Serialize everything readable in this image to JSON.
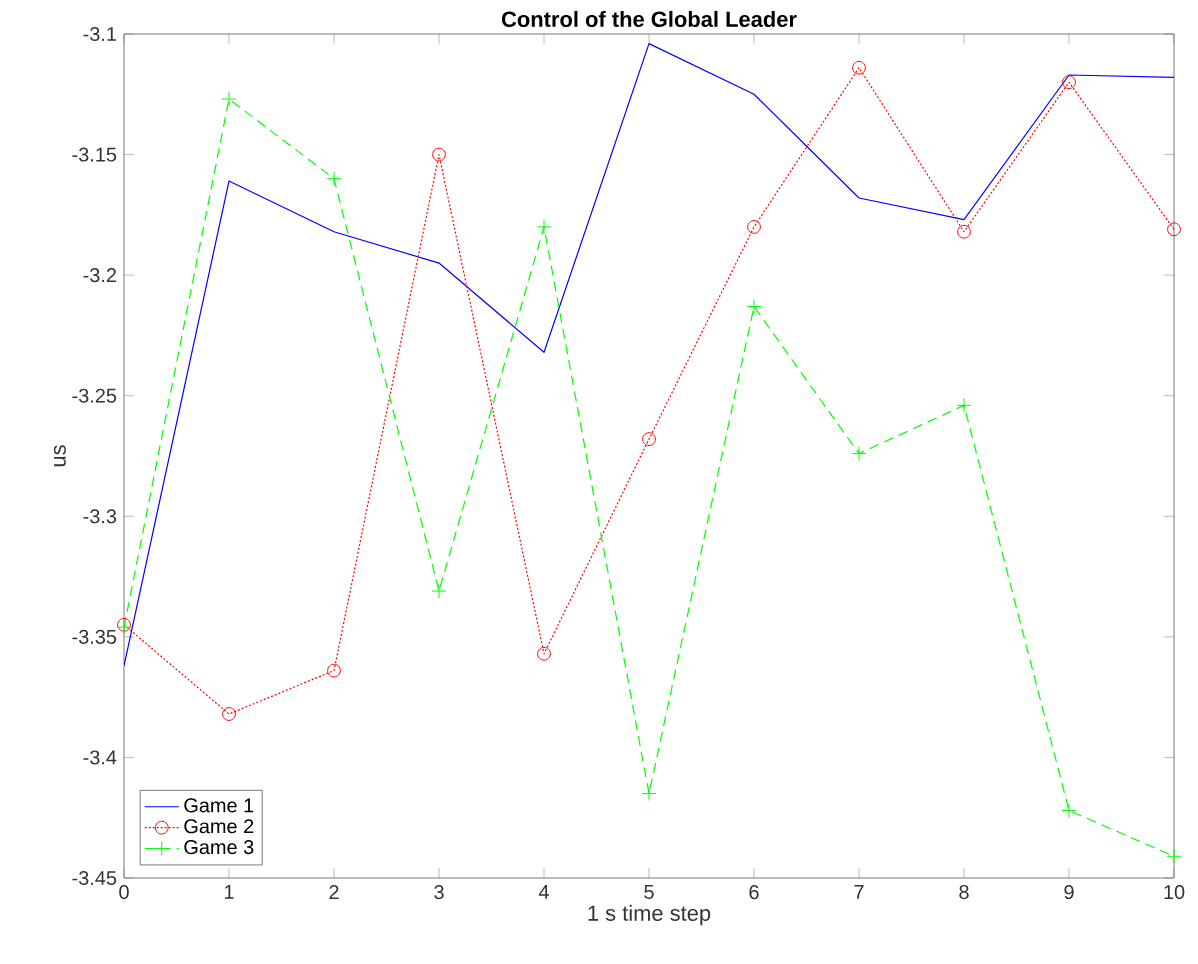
{
  "chart_data": {
    "type": "line",
    "title": "Control of the Global Leader",
    "xlabel": "1 s time step",
    "ylabel": "us",
    "x": [
      0,
      1,
      2,
      3,
      4,
      5,
      6,
      7,
      8,
      9,
      10
    ],
    "series": [
      {
        "name": "Game 1",
        "color": "#0000ff",
        "marker": "none",
        "line_style": "solid",
        "values": [
          -3.362,
          -3.161,
          -3.182,
          -3.195,
          -3.232,
          -3.104,
          -3.125,
          -3.168,
          -3.177,
          -3.117,
          -3.118
        ]
      },
      {
        "name": "Game 2",
        "color": "#ff0000",
        "marker": "circle",
        "line_style": "dotted",
        "values": [
          -3.345,
          -3.382,
          -3.364,
          -3.15,
          -3.357,
          -3.268,
          -3.18,
          -3.114,
          -3.182,
          -3.12,
          -3.181
        ]
      },
      {
        "name": "Game 3",
        "color": "#00ff00",
        "marker": "cross",
        "line_style": "dashed",
        "values": [
          -3.346,
          -3.127,
          -3.16,
          -3.331,
          -3.18,
          -3.415,
          -3.213,
          -3.274,
          -3.254,
          -3.422,
          -3.441
        ]
      }
    ],
    "xlim": [
      0,
      10
    ],
    "ylim": [
      -3.45,
      -3.1
    ],
    "xticks": [
      0,
      1,
      2,
      3,
      4,
      5,
      6,
      7,
      8,
      9,
      10
    ],
    "yticks": [
      -3.45,
      -3.4,
      -3.35,
      -3.3,
      -3.25,
      -3.2,
      -3.15,
      -3.1
    ],
    "grid": false,
    "legend": "bottom left"
  }
}
